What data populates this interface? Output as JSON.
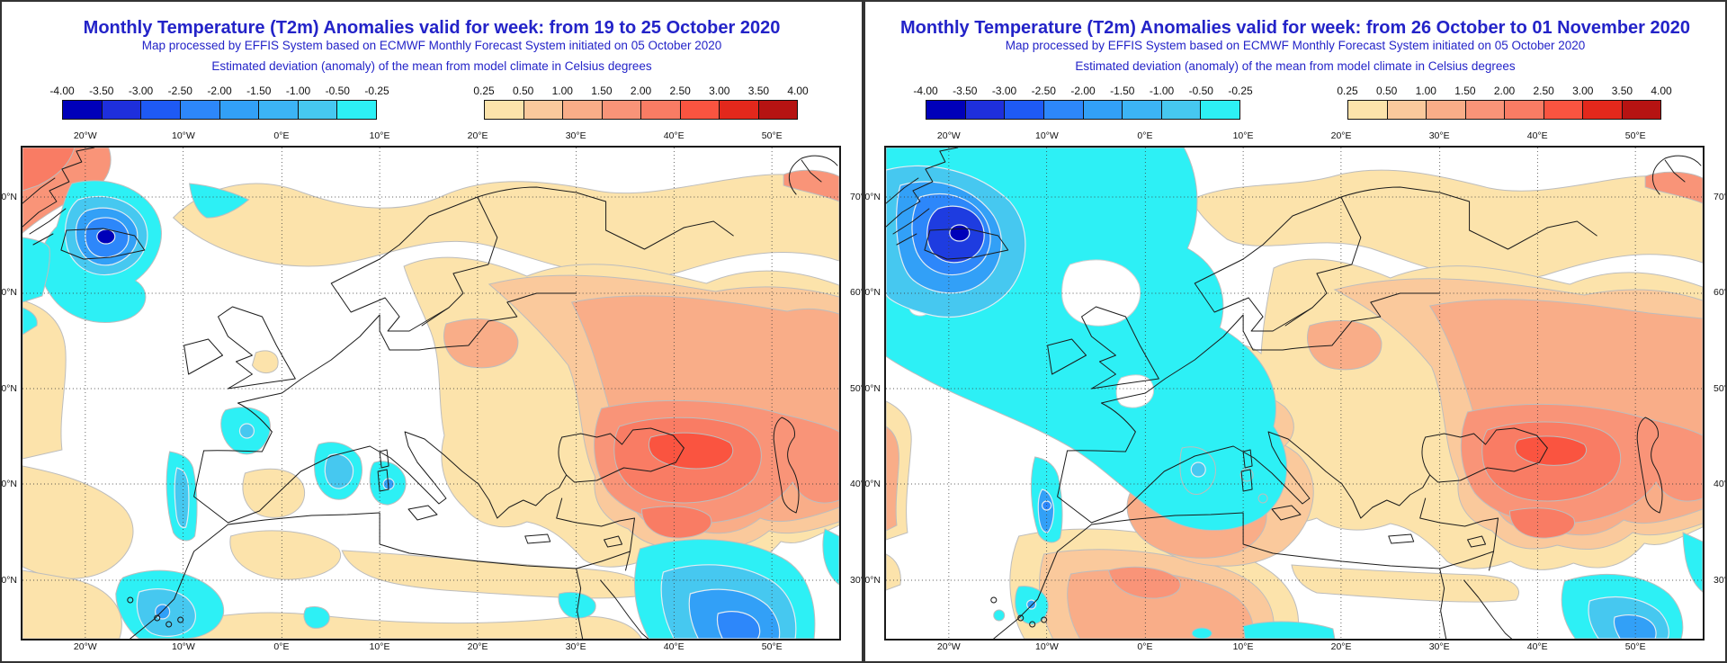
{
  "panels": [
    {
      "title": "Monthly Temperature (T2m) Anomalies valid for week: from 19 to 25 October 2020",
      "subtitle1": "Map processed by EFFIS System based on ECMWF Monthly Forecast System initiated on 05 October 2020",
      "subtitle2": "Estimated deviation (anomaly) of the mean from model climate in Celsius degrees"
    },
    {
      "title": "Monthly Temperature (T2m) Anomalies valid for week: from 26 October to 01 November 2020",
      "subtitle1": "Map processed by EFFIS System based on ECMWF Monthly Forecast System initiated on 05 October 2020",
      "subtitle2": "Estimated deviation (anomaly) of the mean from model climate in Celsius degrees"
    }
  ],
  "legend": {
    "negative": {
      "labels": [
        "-4.00",
        "-3.50",
        "-3.00",
        "-2.50",
        "-2.00",
        "-1.50",
        "-1.00",
        "-0.50",
        "-0.25"
      ],
      "colors": [
        "#0000b9",
        "#1e2fdc",
        "#1e5af5",
        "#2d87fa",
        "#32a0f7",
        "#3cb4f5",
        "#46c8f0",
        "#2df0f5"
      ]
    },
    "positive": {
      "labels": [
        "0.25",
        "0.50",
        "1.00",
        "1.50",
        "2.00",
        "2.50",
        "3.00",
        "3.50",
        "4.00"
      ],
      "colors": [
        "#fce3ab",
        "#fac99c",
        "#f9ad88",
        "#f99478",
        "#f97c64",
        "#fa5440",
        "#e3281c",
        "#b61312"
      ]
    },
    "units": "Celsius degrees anomaly"
  },
  "axes": {
    "lon_labels": [
      "20°W",
      "10°W",
      "0°E",
      "10°E",
      "20°E",
      "30°E",
      "40°E",
      "50°E"
    ],
    "lat_labels": [
      "70°N",
      "60°N",
      "50°N",
      "40°N",
      "30°N"
    ]
  },
  "colors": {
    "title_blue": "#2323c8",
    "warm_scale_max": "#b61312",
    "cold_scale_max": "#0000b9",
    "neutral_white": "#ffffff"
  }
}
